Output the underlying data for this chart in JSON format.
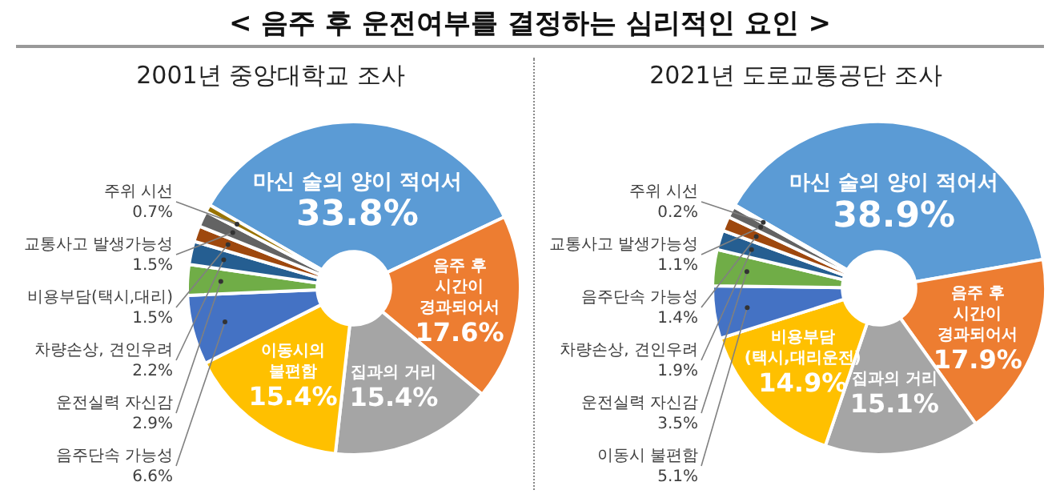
{
  "chart_data": [
    {
      "type": "donut",
      "title": "< 음주 후 운전여부를 결정하는 심리적인 요인 >",
      "subtitle": "2001년 중앙대학교 조사",
      "categories": [
        "마신 술의 양이 적어서",
        "음주 후 시간이 경과되어서",
        "집과의 거리",
        "이동시의 불편함",
        "음주단속 가능성",
        "운전실력 자신감",
        "차량손상, 견인우려",
        "비용부담(택시,대리)",
        "교통사고 발생가능성",
        "주위 시선"
      ],
      "values": [
        33.8,
        17.6,
        15.4,
        15.4,
        6.6,
        2.9,
        2.2,
        1.5,
        1.5,
        0.7
      ],
      "value_labels": [
        "33.8%",
        "17.6%",
        "15.4%",
        "15.4%",
        "6.6%",
        "2.9%",
        "2.2%",
        "1.5%",
        "1.5%",
        "0.7%"
      ],
      "colors": [
        "#5b9bd5",
        "#ed7d31",
        "#a5a5a5",
        "#ffc000",
        "#4472c4",
        "#70ad47",
        "#255e91",
        "#9e480e",
        "#636363",
        "#997300"
      ]
    },
    {
      "type": "donut",
      "subtitle": "2021년 도로교통공단 조사",
      "categories": [
        "마신 술의 양이 적어서",
        "음주 후 시간이 경과되어서",
        "집과의 거리",
        "비용부담(택시,대리운전)",
        "이동시 불편함",
        "운전실력 자신감",
        "차량손상, 견인우려",
        "음주단속 가능성",
        "교통사고 발생가능성",
        "주위 시선"
      ],
      "values": [
        38.9,
        17.9,
        15.1,
        14.9,
        5.1,
        3.5,
        1.9,
        1.4,
        1.1,
        0.2
      ],
      "value_labels": [
        "38.9%",
        "17.9%",
        "15.1%",
        "14.9%",
        "5.1%",
        "3.5%",
        "1.9%",
        "1.4%",
        "1.1%",
        "0.2%"
      ],
      "colors": [
        "#5b9bd5",
        "#ed7d31",
        "#a5a5a5",
        "#ffc000",
        "#4472c4",
        "#70ad47",
        "#255e91",
        "#9e480e",
        "#636363",
        "#997300"
      ]
    }
  ]
}
